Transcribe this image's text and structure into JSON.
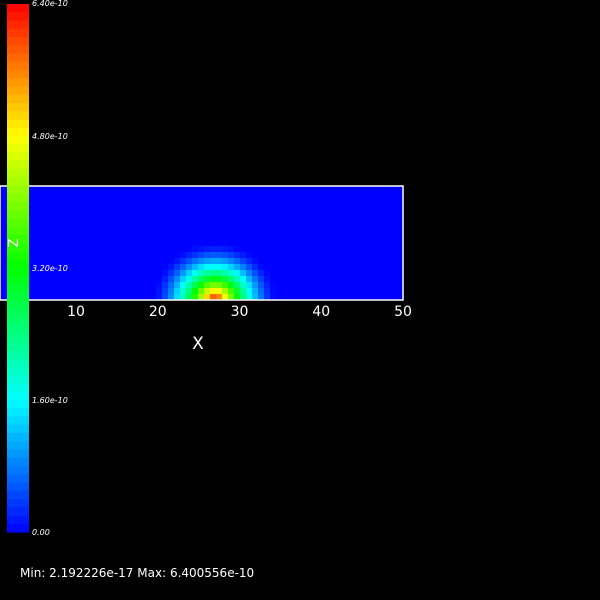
{
  "footer": {
    "min_label": "Min:",
    "min_value": "2.192226e-17",
    "max_label": "Max:",
    "max_value": "6.400556e-10"
  },
  "chart_data": {
    "type": "heatmap",
    "xlabel": "X",
    "ylabel": "Z",
    "xlim": [
      0,
      50
    ],
    "x_ticks": [
      "10",
      "20",
      "30",
      "40",
      "50"
    ],
    "colorbar": {
      "colormap": "rainbow (blue-cyan-green-yellow-red)",
      "range": [
        0,
        6.4e-10
      ],
      "tick_labels": [
        "0.00",
        "1.60e-10",
        "3.20e-10",
        "4.80e-10",
        "6.40e-10"
      ]
    },
    "field": {
      "peak_x": 27,
      "peak_value": 6.400556e-10,
      "min_value": 2.192226e-17,
      "description_shape": "semicircular plume centered near x=27 at the bottom boundary"
    },
    "colors": {
      "background": "#000000",
      "frame": "#ffffff",
      "low": "#0000ff",
      "high": "#ff0000"
    }
  }
}
